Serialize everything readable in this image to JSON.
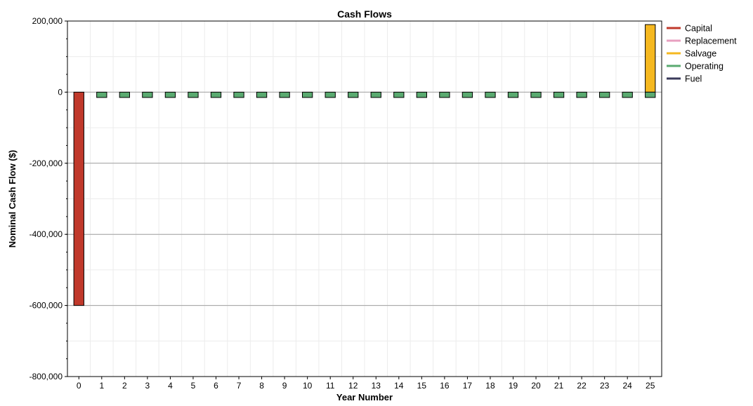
{
  "chart_data": {
    "type": "bar",
    "title": "Cash Flows",
    "xlabel": "Year Number",
    "ylabel": "Nominal Cash Flow ($)",
    "ylim": [
      -800000,
      200000
    ],
    "yticks": [
      200000,
      0,
      -200000,
      -400000,
      -600000,
      -800000
    ],
    "ytick_labels": [
      "200,000",
      "0",
      "-200,000",
      "-400,000",
      "-600,000",
      "-800,000"
    ],
    "categories": [
      "0",
      "1",
      "2",
      "3",
      "4",
      "5",
      "6",
      "7",
      "8",
      "9",
      "10",
      "11",
      "12",
      "13",
      "14",
      "15",
      "16",
      "17",
      "18",
      "19",
      "20",
      "21",
      "22",
      "23",
      "24",
      "25"
    ],
    "grid": true,
    "legend_position": "right",
    "series": [
      {
        "name": "Capital",
        "color": "#c0392b",
        "values": [
          -600000,
          0,
          0,
          0,
          0,
          0,
          0,
          0,
          0,
          0,
          0,
          0,
          0,
          0,
          0,
          0,
          0,
          0,
          0,
          0,
          0,
          0,
          0,
          0,
          0,
          0
        ]
      },
      {
        "name": "Replacement",
        "color": "#e8a0c0",
        "values": [
          0,
          0,
          0,
          0,
          0,
          0,
          0,
          0,
          0,
          0,
          0,
          0,
          0,
          0,
          0,
          0,
          0,
          0,
          0,
          0,
          0,
          0,
          0,
          0,
          0,
          0
        ]
      },
      {
        "name": "Salvage",
        "color": "#f5b820",
        "values": [
          0,
          0,
          0,
          0,
          0,
          0,
          0,
          0,
          0,
          0,
          0,
          0,
          0,
          0,
          0,
          0,
          0,
          0,
          0,
          0,
          0,
          0,
          0,
          0,
          0,
          190000
        ]
      },
      {
        "name": "Operating",
        "color": "#5aaa70",
        "values": [
          0,
          -15000,
          -15000,
          -15000,
          -15000,
          -15000,
          -15000,
          -15000,
          -15000,
          -15000,
          -15000,
          -15000,
          -15000,
          -15000,
          -15000,
          -15000,
          -15000,
          -15000,
          -15000,
          -15000,
          -15000,
          -15000,
          -15000,
          -15000,
          -15000,
          -15000
        ]
      },
      {
        "name": "Fuel",
        "color": "#3a3a5a",
        "values": [
          0,
          0,
          0,
          0,
          0,
          0,
          0,
          0,
          0,
          0,
          0,
          0,
          0,
          0,
          0,
          0,
          0,
          0,
          0,
          0,
          0,
          0,
          0,
          0,
          0,
          0
        ]
      }
    ]
  }
}
